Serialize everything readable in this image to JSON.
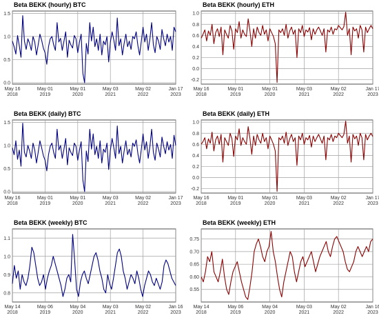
{
  "colors": {
    "btc": "#000080",
    "eth": "#8b0000",
    "grid": "#a0a0a0",
    "frame": "#222222"
  },
  "chart_data": [
    {
      "type": "line",
      "title": "Beta BEKK (hourly) BTC",
      "color": "#000080",
      "ylim": [
        -0.03,
        1.55
      ],
      "yticks": [
        {
          "v": 0.0,
          "label": "0.0"
        },
        {
          "v": 0.5,
          "label": "0.5"
        },
        {
          "v": 1.0,
          "label": "1.0"
        },
        {
          "v": 1.5,
          "label": "1.5"
        }
      ],
      "xticks": [
        {
          "label": [
            "May 16",
            "2018"
          ]
        },
        {
          "label": [
            "May 01",
            "2019"
          ]
        },
        {
          "label": [
            "May 01",
            "2020"
          ]
        },
        {
          "label": [
            "May 03",
            "2021"
          ]
        },
        {
          "label": [
            "May 02",
            "2022"
          ]
        },
        {
          "label": [
            "Jan 17",
            "2023"
          ]
        }
      ],
      "series": [
        {
          "values": [
            0.9,
            0.78,
            0.62,
            1.02,
            0.8,
            0.55,
            1.45,
            0.9,
            0.72,
            0.95,
            0.85,
            0.7,
            1.0,
            0.88,
            0.6,
            0.82,
            1.05,
            0.92,
            0.75,
            0.65,
            0.4,
            0.78,
            0.95,
            1.0,
            0.82,
            0.7,
            1.3,
            0.88,
            0.96,
            0.7,
            0.9,
            1.1,
            0.55,
            0.92,
            0.82,
            0.75,
            1.02,
            0.95,
            0.65,
            0.88,
            1.05,
            0.2,
            0.0,
            0.85,
            0.62,
            1.3,
            0.9,
            1.2,
            0.78,
            0.95,
            0.7,
            1.05,
            0.6,
            0.9,
            0.82,
            1.0,
            0.45,
            0.88,
            1.1,
            0.92,
            0.7,
            1.4,
            0.8,
            0.95,
            0.6,
            0.85,
            1.05,
            0.78,
            0.9,
            0.72,
            1.0,
            0.95,
            1.1,
            0.8,
            0.6,
            0.9,
            1.2,
            0.88,
            1.05,
            0.7,
            0.95,
            1.3,
            0.82,
            0.65,
            1.0,
            0.9,
            0.72,
            1.15,
            0.95,
            0.8,
            1.05,
            0.88,
            1.0,
            0.7,
            1.2,
            1.1
          ]
        }
      ]
    },
    {
      "type": "line",
      "title": "Beta BEKK (hourly) ETH",
      "color": "#8b0000",
      "ylim": [
        -0.28,
        1.04
      ],
      "yticks": [
        {
          "v": -0.2,
          "label": "-0.2"
        },
        {
          "v": 0.0,
          "label": "0.0"
        },
        {
          "v": 0.2,
          "label": "0.2"
        },
        {
          "v": 0.4,
          "label": "0.4"
        },
        {
          "v": 0.6,
          "label": "0.6"
        },
        {
          "v": 0.8,
          "label": "0.8"
        },
        {
          "v": 1.0,
          "label": "1.0"
        }
      ],
      "xticks": [
        {
          "label": [
            "May 16",
            "2018"
          ]
        },
        {
          "label": [
            "May 01",
            "2019"
          ]
        },
        {
          "label": [
            "May 01",
            "2020"
          ]
        },
        {
          "label": [
            "May 03",
            "2021"
          ]
        },
        {
          "label": [
            "May 02",
            "2022"
          ]
        },
        {
          "label": [
            "Jan 17",
            "2023"
          ]
        }
      ],
      "series": [
        {
          "values": [
            0.55,
            0.62,
            0.7,
            0.5,
            0.68,
            0.6,
            0.8,
            0.45,
            0.65,
            0.72,
            0.58,
            0.75,
            0.25,
            0.7,
            0.62,
            0.55,
            0.78,
            0.68,
            0.35,
            0.72,
            0.65,
            0.85,
            0.55,
            0.7,
            0.62,
            0.58,
            0.9,
            0.68,
            0.4,
            0.72,
            0.55,
            0.75,
            0.65,
            0.6,
            0.78,
            0.62,
            0.7,
            0.5,
            0.72,
            0.65,
            0.58,
            0.45,
            -0.25,
            0.7,
            0.65,
            0.72,
            0.6,
            0.8,
            0.55,
            0.68,
            0.75,
            0.62,
            0.7,
            0.2,
            0.72,
            0.65,
            0.78,
            0.58,
            0.7,
            0.66,
            0.74,
            0.52,
            0.72,
            0.62,
            0.7,
            0.75,
            0.68,
            0.6,
            0.72,
            0.3,
            0.7,
            0.66,
            0.75,
            0.62,
            0.72,
            0.7,
            0.78,
            0.74,
            0.7,
            0.76,
            1.02,
            0.6,
            0.72,
            0.25,
            0.75,
            0.68,
            0.72,
            0.55,
            0.78,
            0.7,
            0.3,
            0.75,
            0.65,
            0.72,
            0.78,
            0.72
          ]
        }
      ]
    },
    {
      "type": "line",
      "title": "Beta BEKK (daily) BTC",
      "color": "#000080",
      "ylim": [
        -0.03,
        1.55
      ],
      "yticks": [
        {
          "v": 0.0,
          "label": "0.0"
        },
        {
          "v": 0.5,
          "label": "0.5"
        },
        {
          "v": 1.0,
          "label": "1.0"
        },
        {
          "v": 1.5,
          "label": "1.5"
        }
      ],
      "xticks": [
        {
          "label": [
            "May 16",
            "2018"
          ]
        },
        {
          "label": [
            "May 01",
            "2019"
          ]
        },
        {
          "label": [
            "May 01",
            "2020"
          ]
        },
        {
          "label": [
            "May 03",
            "2021"
          ]
        },
        {
          "label": [
            "May 02",
            "2022"
          ]
        },
        {
          "label": [
            "Jan 17",
            "2023"
          ]
        }
      ],
      "series": [
        {
          "values": [
            0.95,
            0.8,
            1.1,
            0.7,
            0.9,
            0.55,
            1.48,
            0.85,
            0.75,
            1.0,
            0.88,
            0.72,
            1.05,
            0.9,
            0.62,
            0.85,
            1.1,
            0.95,
            0.78,
            0.68,
            0.45,
            0.8,
            0.98,
            1.05,
            0.85,
            0.72,
            1.35,
            0.9,
            1.0,
            0.72,
            0.92,
            1.15,
            0.58,
            0.95,
            0.85,
            0.78,
            1.05,
            0.98,
            0.68,
            0.9,
            1.08,
            0.25,
            0.0,
            0.88,
            0.65,
            1.35,
            0.92,
            1.25,
            0.8,
            0.98,
            0.72,
            1.1,
            0.62,
            0.92,
            0.85,
            1.05,
            0.48,
            0.9,
            1.15,
            0.95,
            0.72,
            1.42,
            0.82,
            0.98,
            0.62,
            0.88,
            1.1,
            0.8,
            0.92,
            0.75,
            1.05,
            0.98,
            1.12,
            0.82,
            0.62,
            0.92,
            1.25,
            0.9,
            1.08,
            0.72,
            0.98,
            1.35,
            0.85,
            0.68,
            1.05,
            0.92,
            0.75,
            1.18,
            0.98,
            0.82,
            1.08,
            0.9,
            1.02,
            0.72,
            1.22,
            1.0
          ]
        }
      ]
    },
    {
      "type": "line",
      "title": "Beta BEKK (daily) ETH",
      "color": "#8b0000",
      "ylim": [
        -0.28,
        1.04
      ],
      "yticks": [
        {
          "v": -0.2,
          "label": "-0.2"
        },
        {
          "v": 0.0,
          "label": "0.0"
        },
        {
          "v": 0.2,
          "label": "0.2"
        },
        {
          "v": 0.4,
          "label": "0.4"
        },
        {
          "v": 0.6,
          "label": "0.6"
        },
        {
          "v": 0.8,
          "label": "0.8"
        },
        {
          "v": 1.0,
          "label": "1.0"
        }
      ],
      "xticks": [
        {
          "label": [
            "May 16",
            "2018"
          ]
        },
        {
          "label": [
            "May 01",
            "2019"
          ]
        },
        {
          "label": [
            "May 01",
            "2020"
          ]
        },
        {
          "label": [
            "May 03",
            "2021"
          ]
        },
        {
          "label": [
            "May 02",
            "2022"
          ]
        },
        {
          "label": [
            "Jan 17",
            "2023"
          ]
        }
      ],
      "series": [
        {
          "values": [
            0.6,
            0.65,
            0.72,
            0.52,
            0.7,
            0.62,
            0.82,
            0.48,
            0.68,
            0.75,
            0.6,
            0.78,
            0.28,
            0.72,
            0.65,
            0.58,
            0.8,
            0.7,
            0.38,
            0.75,
            0.68,
            0.88,
            0.58,
            0.72,
            0.65,
            0.6,
            0.92,
            0.7,
            0.42,
            0.75,
            0.58,
            0.78,
            0.68,
            0.62,
            0.8,
            0.65,
            0.72,
            0.52,
            0.75,
            0.68,
            0.6,
            0.48,
            -0.25,
            0.72,
            0.68,
            0.75,
            0.62,
            0.82,
            0.58,
            0.7,
            0.78,
            0.65,
            0.72,
            0.22,
            0.75,
            0.68,
            0.8,
            0.6,
            0.72,
            0.68,
            0.76,
            0.55,
            0.75,
            0.65,
            0.72,
            0.78,
            0.7,
            0.62,
            0.75,
            0.32,
            0.72,
            0.68,
            0.78,
            0.65,
            0.75,
            0.72,
            0.8,
            0.76,
            0.72,
            0.78,
            1.02,
            0.62,
            0.75,
            0.28,
            0.78,
            0.7,
            0.75,
            0.58,
            0.8,
            0.72,
            0.32,
            0.78,
            0.68,
            0.75,
            0.8,
            0.74
          ]
        }
      ]
    },
    {
      "type": "line",
      "title": "Beta BEKK (weekly) BTC",
      "color": "#000080",
      "ylim": [
        0.75,
        1.15
      ],
      "yticks": [
        {
          "v": 0.8,
          "label": "0.8"
        },
        {
          "v": 0.9,
          "label": "0.9"
        },
        {
          "v": 1.0,
          "label": "1.0"
        },
        {
          "v": 1.1,
          "label": "1.1"
        }
      ],
      "xticks": [
        {
          "label": [
            "May 14",
            "2018"
          ]
        },
        {
          "label": [
            "May 06",
            "2019"
          ]
        },
        {
          "label": [
            "May 04",
            "2020"
          ]
        },
        {
          "label": [
            "May 03",
            "2021"
          ]
        },
        {
          "label": [
            "May 02",
            "2022"
          ]
        },
        {
          "label": [
            "Jan 16",
            "2023"
          ]
        }
      ],
      "series": [
        {
          "values": [
            0.85,
            0.95,
            0.88,
            0.92,
            0.82,
            0.9,
            0.86,
            0.84,
            0.88,
            0.95,
            1.05,
            1.02,
            0.95,
            0.88,
            0.84,
            0.86,
            0.9,
            0.82,
            0.88,
            0.92,
            0.95,
            1.0,
            0.96,
            0.92,
            0.88,
            0.84,
            0.78,
            0.82,
            0.88,
            0.9,
            0.86,
            1.12,
            0.98,
            0.82,
            0.78,
            0.86,
            0.9,
            0.92,
            0.88,
            0.85,
            0.9,
            0.95,
            1.0,
            1.02,
            0.98,
            0.92,
            0.88,
            0.82,
            0.8,
            0.9,
            0.85,
            0.82,
            0.88,
            0.95,
            1.02,
            1.04,
            1.0,
            0.92,
            0.88,
            0.82,
            0.86,
            0.9,
            0.88,
            0.85,
            0.92,
            0.88,
            0.82,
            0.78,
            0.84,
            0.88,
            0.92,
            0.9,
            0.86,
            0.84,
            0.88,
            0.85,
            0.82,
            0.86,
            0.95,
            0.98,
            0.96,
            0.92,
            0.88,
            0.86,
            0.84
          ]
        }
      ]
    },
    {
      "type": "line",
      "title": "Beta BEKK (weekly) ETH",
      "color": "#8b0000",
      "ylim": [
        0.5,
        0.79
      ],
      "yticks": [
        {
          "v": 0.55,
          "label": "0.55"
        },
        {
          "v": 0.6,
          "label": "0.60"
        },
        {
          "v": 0.65,
          "label": "0.65"
        },
        {
          "v": 0.7,
          "label": "0.70"
        },
        {
          "v": 0.75,
          "label": "0.75"
        }
      ],
      "xticks": [
        {
          "label": [
            "May 14",
            "2018"
          ]
        },
        {
          "label": [
            "May 06",
            "2019"
          ]
        },
        {
          "label": [
            "May 04",
            "2020"
          ]
        },
        {
          "label": [
            "May 03",
            "2021"
          ]
        },
        {
          "label": [
            "May 02",
            "2022"
          ]
        },
        {
          "label": [
            "Jan 16",
            "2023"
          ]
        }
      ],
      "series": [
        {
          "values": [
            0.6,
            0.58,
            0.62,
            0.68,
            0.66,
            0.7,
            0.62,
            0.6,
            0.58,
            0.62,
            0.67,
            0.6,
            0.55,
            0.53,
            0.58,
            0.62,
            0.64,
            0.66,
            0.62,
            0.58,
            0.55,
            0.52,
            0.51,
            0.56,
            0.62,
            0.7,
            0.73,
            0.75,
            0.72,
            0.68,
            0.66,
            0.7,
            0.72,
            0.78,
            0.7,
            0.66,
            0.6,
            0.55,
            0.52,
            0.58,
            0.62,
            0.66,
            0.7,
            0.68,
            0.62,
            0.58,
            0.62,
            0.66,
            0.68,
            0.64,
            0.66,
            0.68,
            0.7,
            0.66,
            0.62,
            0.65,
            0.68,
            0.7,
            0.72,
            0.74,
            0.7,
            0.68,
            0.72,
            0.75,
            0.76,
            0.74,
            0.72,
            0.7,
            0.66,
            0.63,
            0.62,
            0.64,
            0.66,
            0.7,
            0.72,
            0.7,
            0.68,
            0.7,
            0.72,
            0.7,
            0.74,
            0.75
          ]
        }
      ]
    }
  ]
}
